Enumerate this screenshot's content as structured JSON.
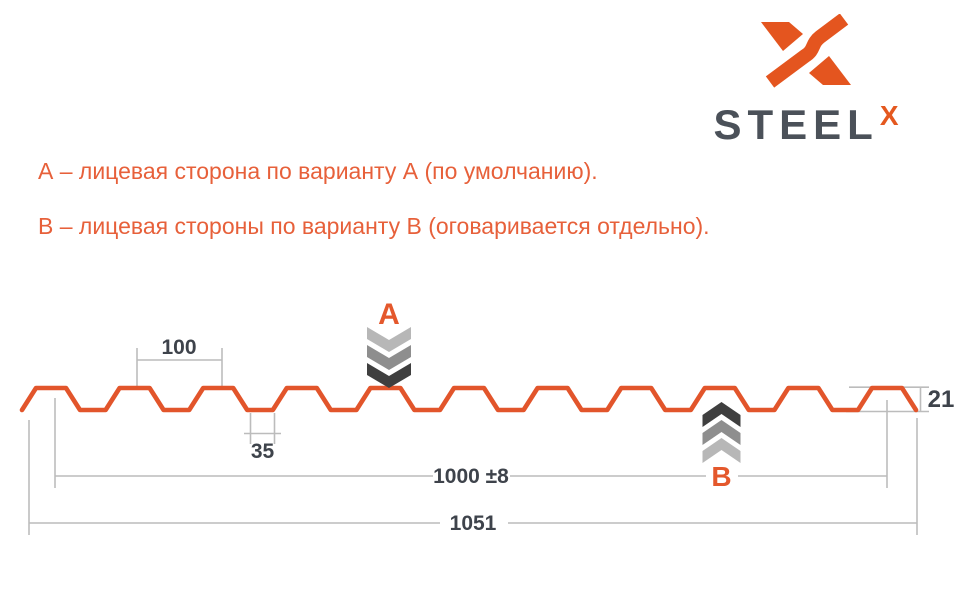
{
  "logo": {
    "wordmark": "STEEL",
    "superscript": "X"
  },
  "notes": {
    "line_a": "А – лицевая сторона по варианту А (по умолчанию).",
    "line_b": "В – лицевая стороны по варианту В (оговаривается отдельно)."
  },
  "diagram": {
    "marker_a": "А",
    "marker_b": "В",
    "dimensions": {
      "rib_pitch": "100",
      "rib_bottom_width": "35",
      "profile_height": "21",
      "working_width": "1000 ±8",
      "full_width": "1051"
    },
    "colors": {
      "profile_orange": "#e2552b",
      "accent_orange": "#e4582c",
      "note_orange": "#e7603a",
      "dim_line_gray": "#bcbcbc",
      "dim_text_dark": "#3e434b",
      "chevron_light": "#b7b7b7",
      "chevron_mid": "#8e8e8e",
      "chevron_dark": "#3f3f3f",
      "logo_text_gray": "#4b5159"
    }
  }
}
